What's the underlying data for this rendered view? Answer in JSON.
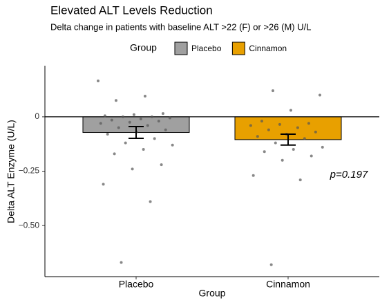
{
  "chart_data": {
    "type": "bar",
    "title": "Elevated ALT Levels Reduction",
    "subtitle": "Delta change in patients with baseline ALT >22 (F) or >26 (M) U/L",
    "x_label": "Group",
    "y_label": "Delta ALT Enzyme (U/L)",
    "legend_title": "Group",
    "legend": "top",
    "annotation": "p=0.197",
    "categories": [
      "Placebo",
      "Cinnamon"
    ],
    "values": [
      -0.072,
      -0.105
    ],
    "errors": [
      0.027,
      0.025
    ],
    "colors": [
      "#a0a0a0",
      "#e8a000"
    ],
    "points": [
      [
        0.165,
        0.095,
        0.075,
        0.015,
        0.01,
        0.005,
        0,
        0,
        -0.005,
        -0.01,
        -0.015,
        -0.02,
        -0.025,
        -0.03,
        -0.04,
        -0.05,
        -0.06,
        -0.07,
        -0.08,
        -0.1,
        -0.12,
        -0.13,
        -0.15,
        -0.17,
        -0.22,
        -0.24,
        -0.31,
        -0.39,
        -0.67
      ],
      [
        0.12,
        0.1,
        0.03,
        -0.02,
        -0.03,
        -0.035,
        -0.04,
        -0.05,
        -0.06,
        -0.07,
        -0.08,
        -0.09,
        -0.1,
        -0.12,
        -0.14,
        -0.15,
        -0.16,
        -0.18,
        -0.2,
        -0.27,
        -0.29,
        -0.68
      ]
    ],
    "ylim": [
      -0.735,
      0.235
    ],
    "yticks": [
      {
        "value": -0.5,
        "label": "−0.50"
      },
      {
        "value": -0.25,
        "label": "−0.25"
      },
      0
    ],
    "grid": false
  }
}
